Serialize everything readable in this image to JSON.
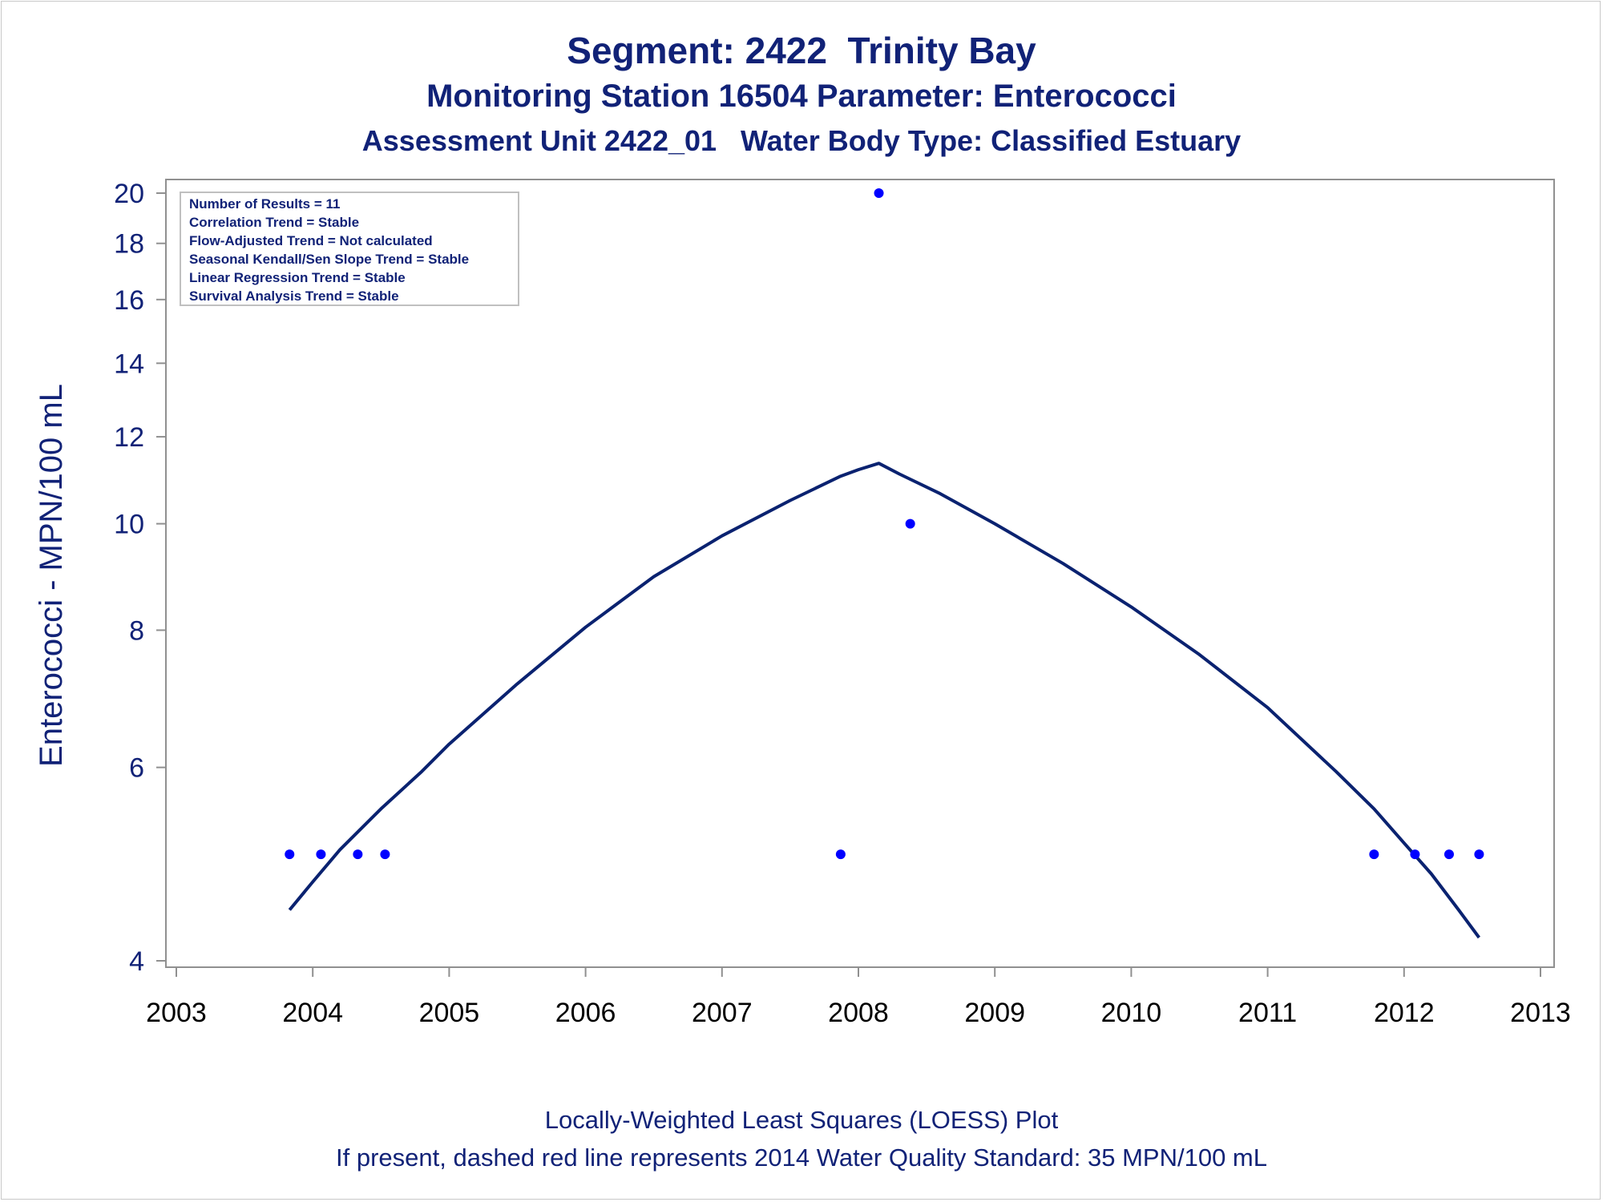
{
  "titles": {
    "line1": "Segment: 2422  Trinity Bay",
    "line2": "Monitoring Station 16504 Parameter: Enterococci",
    "line3": "Assessment Unit 2422_01   Water Body Type: Classified Estuary"
  },
  "footnotes": {
    "line1": "Locally-Weighted Least Squares (LOESS) Plot",
    "line2": "If present, dashed red line represents 2014 Water Quality Standard: 35 MPN/100 mL"
  },
  "stats_box": [
    "Number of Results = 11",
    "Correlation Trend = Stable",
    "Flow-Adjusted Trend = Not calculated",
    "Seasonal Kendall/Sen Slope Trend = Stable",
    "Linear Regression Trend = Stable",
    "Survival Analysis Trend = Stable"
  ],
  "colors": {
    "text": "#112277",
    "points": "#0000ff",
    "loess_line": "#0a2270",
    "axis": "#909090"
  },
  "chart_data": {
    "type": "scatter",
    "ylabel": "Enterococci - MPN/100 mL",
    "xlabel": "",
    "y_scale": "log",
    "xlim": [
      2003,
      2013
    ],
    "ylim": [
      4,
      20
    ],
    "x_ticks": [
      "2003",
      "2004",
      "2005",
      "2006",
      "2007",
      "2008",
      "2009",
      "2010",
      "2011",
      "2012",
      "2013"
    ],
    "y_ticks": [
      "4",
      "6",
      "8",
      "10",
      "12",
      "14",
      "16",
      "18",
      "20"
    ],
    "grid": false,
    "series": [
      {
        "kind": "points",
        "x": [
          2003.83,
          2004.06,
          2004.33,
          2004.53,
          2007.87,
          2008.15,
          2008.38,
          2011.78,
          2012.08,
          2012.33,
          2012.55
        ],
        "y": [
          5,
          5,
          5,
          5,
          5,
          20,
          10,
          5,
          5,
          5,
          5
        ]
      },
      {
        "kind": "loess",
        "x": [
          2003.83,
          2004.0,
          2004.2,
          2004.5,
          2004.8,
          2005.0,
          2005.5,
          2006.0,
          2006.5,
          2007.0,
          2007.5,
          2007.87,
          2008.0,
          2008.15,
          2008.3,
          2008.6,
          2009.0,
          2009.5,
          2010.0,
          2010.5,
          2011.0,
          2011.5,
          2011.78,
          2012.0,
          2012.2,
          2012.4,
          2012.55
        ],
        "y": [
          4.45,
          4.72,
          5.05,
          5.5,
          5.95,
          6.3,
          7.15,
          8.05,
          8.95,
          9.75,
          10.5,
          11.05,
          11.2,
          11.35,
          11.1,
          10.65,
          10.0,
          9.2,
          8.4,
          7.6,
          6.8,
          5.95,
          5.5,
          5.12,
          4.8,
          4.45,
          4.2
        ]
      }
    ]
  }
}
